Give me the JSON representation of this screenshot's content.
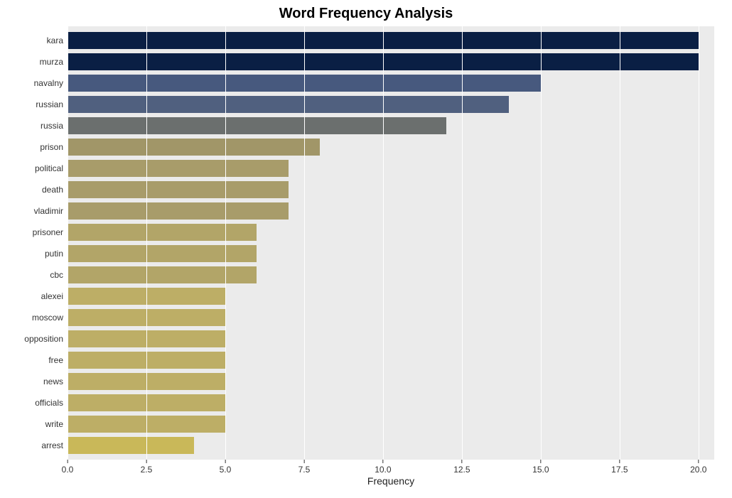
{
  "chart": {
    "type": "bar-horizontal",
    "title": "Word Frequency Analysis",
    "title_fontsize": 20,
    "title_fontweight": "bold",
    "title_color": "#000000",
    "xlabel": "Frequency",
    "xlabel_fontsize": 14,
    "xlabel_color": "#222222",
    "background_color": "#ffffff",
    "panel_background": "#ebebeb",
    "grid_color": "#ffffff",
    "grid_linewidth": 1,
    "axis_text_fontsize": 12,
    "axis_text_color": "#333333",
    "xlim": [
      0,
      20.5
    ],
    "xticks": [
      0.0,
      2.5,
      5.0,
      7.5,
      10.0,
      12.5,
      15.0,
      17.5,
      20.0
    ],
    "xtick_labels": [
      "0.0",
      "2.5",
      "5.0",
      "7.5",
      "10.0",
      "12.5",
      "15.0",
      "17.5",
      "20.0"
    ],
    "bar_rel_height": 0.78,
    "categories": [
      "kara",
      "murza",
      "navalny",
      "russian",
      "russia",
      "prison",
      "political",
      "death",
      "vladimir",
      "prisoner",
      "putin",
      "cbc",
      "alexei",
      "moscow",
      "opposition",
      "free",
      "news",
      "officials",
      "write",
      "arrest"
    ],
    "values": [
      20,
      20,
      15,
      14,
      12,
      8,
      7,
      7,
      7,
      6,
      6,
      6,
      5,
      5,
      5,
      5,
      5,
      5,
      5,
      4
    ],
    "bar_colors": [
      "#0a1f44",
      "#0a1f44",
      "#47597e",
      "#50607f",
      "#6b6f6e",
      "#a19668",
      "#a89c6a",
      "#a89c6a",
      "#a89c6a",
      "#b2a568",
      "#b2a568",
      "#b2a568",
      "#bdae66",
      "#bdae66",
      "#bdae66",
      "#bdae66",
      "#bdae66",
      "#bdae66",
      "#bdae66",
      "#c9b859"
    ]
  }
}
